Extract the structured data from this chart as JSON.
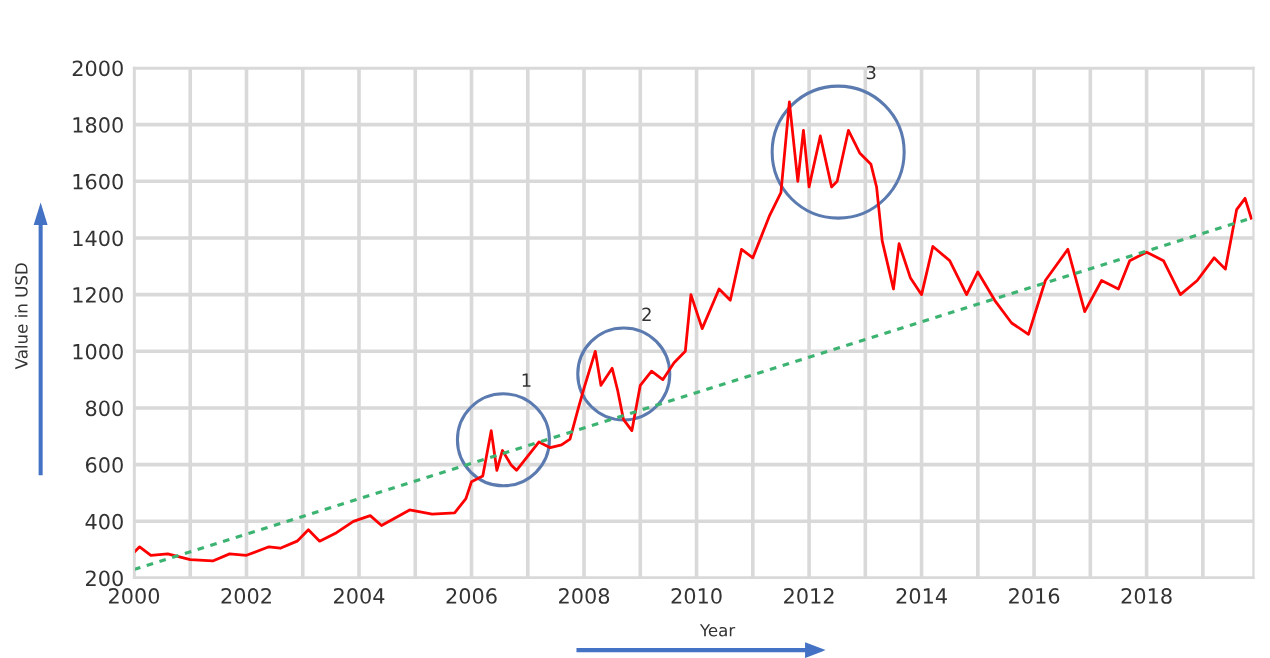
{
  "chart_data": {
    "type": "line",
    "xlabel": "Year",
    "ylabel": "Value in USD",
    "grid": true,
    "marker": "none",
    "xlim": [
      2000,
      2019.9
    ],
    "ylim": [
      200,
      2000
    ],
    "xticks": [
      2000,
      {
        "value": 2001,
        "label": null
      },
      2002,
      {
        "value": 2003,
        "label": null
      },
      2004,
      {
        "value": 2005,
        "label": null
      },
      2006,
      {
        "value": 2007,
        "label": null
      },
      2008,
      {
        "value": 2009,
        "label": null
      },
      2010,
      {
        "value": 2011,
        "label": null
      },
      2012,
      {
        "value": 2013,
        "label": null
      },
      2014,
      {
        "value": 2015,
        "label": null
      },
      2016,
      {
        "value": 2017,
        "label": null
      },
      2018,
      {
        "value": 2019,
        "label": null
      }
    ],
    "yticks": [
      200,
      400,
      600,
      800,
      1000,
      1200,
      1400,
      1600,
      1800,
      2000
    ],
    "annotations": [
      "1",
      "2",
      "3"
    ],
    "series": [
      {
        "color": "#ff0000",
        "line_style": "solid",
        "x": [
          2000.0,
          2000.1,
          2000.3,
          2000.6,
          2001.0,
          2001.4,
          2001.7,
          2002.0,
          2002.4,
          2002.6,
          2002.9,
          2003.1,
          2003.3,
          2003.6,
          2003.9,
          2004.2,
          2004.4,
          2004.9,
          2005.3,
          2005.7,
          2005.9,
          2006.0,
          2006.2,
          2006.35,
          2006.45,
          2006.55,
          2006.7,
          2006.8,
          2007.0,
          2007.2,
          2007.4,
          2007.6,
          2007.75,
          2007.9,
          2008.0,
          2008.2,
          2008.3,
          2008.5,
          2008.6,
          2008.7,
          2008.85,
          2009.0,
          2009.2,
          2009.4,
          2009.6,
          2009.8,
          2009.9,
          2010.1,
          2010.4,
          2010.6,
          2010.8,
          2011.0,
          2011.3,
          2011.5,
          2011.65,
          2011.8,
          2011.9,
          2012.0,
          2012.2,
          2012.4,
          2012.5,
          2012.7,
          2012.9,
          2013.1,
          2013.2,
          2013.3,
          2013.5,
          2013.6,
          2013.8,
          2014.0,
          2014.2,
          2014.5,
          2014.8,
          2015.0,
          2015.3,
          2015.6,
          2015.9,
          2016.2,
          2016.6,
          2016.9,
          2017.2,
          2017.5,
          2017.7,
          2018.0,
          2018.3,
          2018.6,
          2018.9,
          2019.2,
          2019.4,
          2019.6,
          2019.75,
          2019.86
        ],
        "values": [
          290,
          310,
          280,
          285,
          265,
          260,
          285,
          280,
          310,
          305,
          330,
          370,
          330,
          360,
          400,
          420,
          385,
          440,
          425,
          430,
          480,
          540,
          560,
          720,
          580,
          650,
          600,
          580,
          630,
          680,
          660,
          670,
          690,
          800,
          870,
          1000,
          880,
          940,
          860,
          760,
          720,
          880,
          930,
          900,
          960,
          1000,
          1200,
          1080,
          1220,
          1180,
          1360,
          1330,
          1480,
          1560,
          1880,
          1600,
          1780,
          1580,
          1760,
          1580,
          1600,
          1780,
          1700,
          1660,
          1580,
          1390,
          1220,
          1380,
          1260,
          1200,
          1370,
          1320,
          1200,
          1280,
          1180,
          1100,
          1060,
          1250,
          1360,
          1140,
          1250,
          1220,
          1320,
          1350,
          1320,
          1200,
          1250,
          1330,
          1290,
          1500,
          1540,
          1470
        ]
      },
      {
        "color": "#3cb371",
        "line_style": "dashed",
        "x": [
          2000,
          2019.86
        ],
        "values": [
          230,
          1470
        ]
      }
    ]
  }
}
